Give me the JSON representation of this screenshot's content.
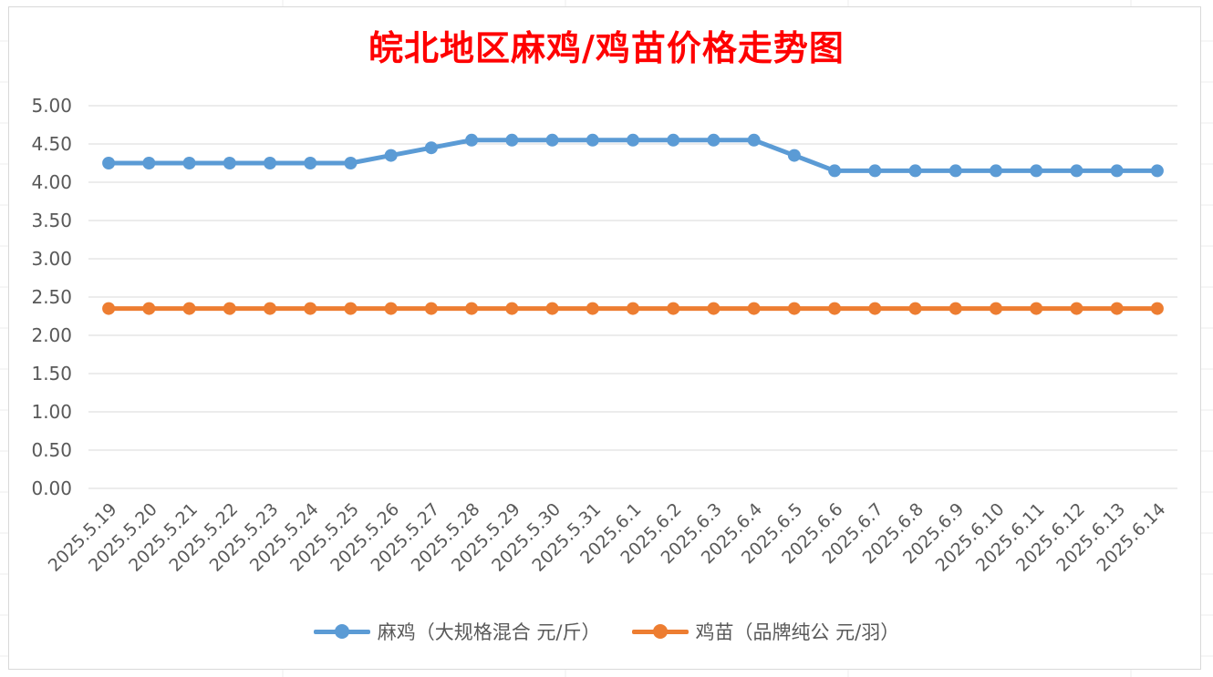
{
  "chart_data": {
    "type": "line",
    "title": "皖北地区麻鸡/鸡苗价格走势图",
    "xlabel": "",
    "ylabel": "",
    "categories": [
      "2025.5.19",
      "2025.5.20",
      "2025.5.21",
      "2025.5.22",
      "2025.5.23",
      "2025.5.24",
      "2025.5.25",
      "2025.5.26",
      "2025.5.27",
      "2025.5.28",
      "2025.5.29",
      "2025.5.30",
      "2025.5.31",
      "2025.6.1",
      "2025.6.2",
      "2025.6.3",
      "2025.6.4",
      "2025.6.5",
      "2025.6.6",
      "2025.6.7",
      "2025.6.8",
      "2025.6.9",
      "2025.6.10",
      "2025.6.11",
      "2025.6.12",
      "2025.6.13",
      "2025.6.14"
    ],
    "series": [
      {
        "name": "麻鸡（大规格混合 元/斤）",
        "color": "#5b9bd5",
        "values": [
          4.25,
          4.25,
          4.25,
          4.25,
          4.25,
          4.25,
          4.25,
          4.35,
          4.45,
          4.55,
          4.55,
          4.55,
          4.55,
          4.55,
          4.55,
          4.55,
          4.55,
          4.35,
          4.15,
          4.15,
          4.15,
          4.15,
          4.15,
          4.15,
          4.15,
          4.15,
          4.15
        ]
      },
      {
        "name": "鸡苗（品牌纯公 元/羽）",
        "color": "#ed7d31",
        "values": [
          2.35,
          2.35,
          2.35,
          2.35,
          2.35,
          2.35,
          2.35,
          2.35,
          2.35,
          2.35,
          2.35,
          2.35,
          2.35,
          2.35,
          2.35,
          2.35,
          2.35,
          2.35,
          2.35,
          2.35,
          2.35,
          2.35,
          2.35,
          2.35,
          2.35,
          2.35,
          2.35
        ]
      }
    ],
    "ylim": [
      0,
      5
    ],
    "yticks": [
      "0.00",
      "0.50",
      "1.00",
      "1.50",
      "2.00",
      "2.50",
      "3.00",
      "3.50",
      "4.00",
      "4.50",
      "5.00"
    ],
    "grid": true,
    "legend_position": "bottom",
    "colors": {
      "title": "#ff0000",
      "axis_text": "#595959",
      "gridline": "#d9d9d9"
    }
  }
}
